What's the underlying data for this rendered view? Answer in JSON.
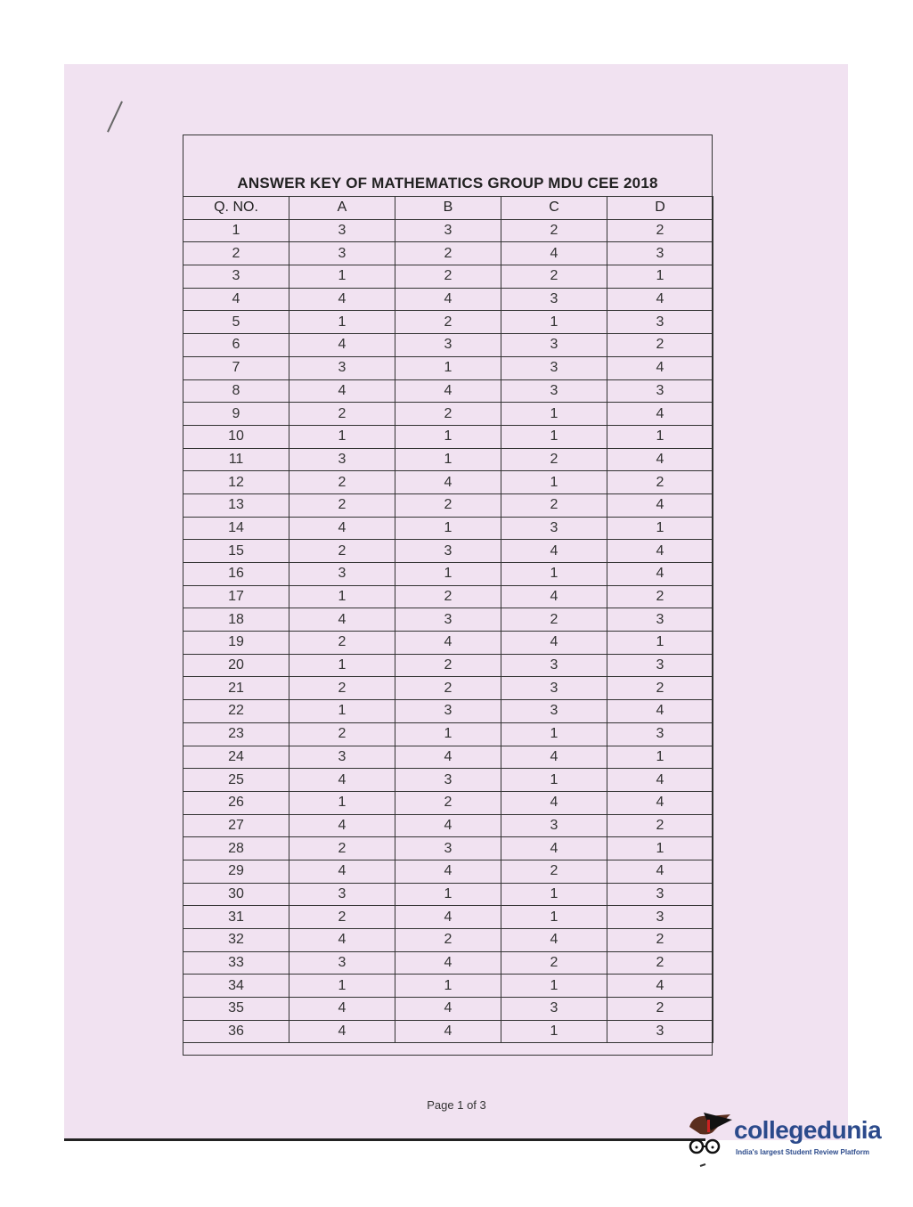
{
  "document": {
    "title": "ANSWER KEY OF MATHEMATICS GROUP MDU CEE 2018",
    "columns": [
      "Q. NO.",
      "A",
      "B",
      "C",
      "D"
    ],
    "rows": [
      [
        "1",
        "3",
        "3",
        "2",
        "2"
      ],
      [
        "2",
        "3",
        "2",
        "4",
        "3"
      ],
      [
        "3",
        "1",
        "2",
        "2",
        "1"
      ],
      [
        "4",
        "4",
        "4",
        "3",
        "4"
      ],
      [
        "5",
        "1",
        "2",
        "1",
        "3"
      ],
      [
        "6",
        "4",
        "3",
        "3",
        "2"
      ],
      [
        "7",
        "3",
        "1",
        "3",
        "4"
      ],
      [
        "8",
        "4",
        "4",
        "3",
        "3"
      ],
      [
        "9",
        "2",
        "2",
        "1",
        "4"
      ],
      [
        "10",
        "1",
        "1",
        "1",
        "1"
      ],
      [
        "11",
        "3",
        "1",
        "2",
        "4"
      ],
      [
        "12",
        "2",
        "4",
        "1",
        "2"
      ],
      [
        "13",
        "2",
        "2",
        "2",
        "4"
      ],
      [
        "14",
        "4",
        "1",
        "3",
        "1"
      ],
      [
        "15",
        "2",
        "3",
        "4",
        "4"
      ],
      [
        "16",
        "3",
        "1",
        "1",
        "4"
      ],
      [
        "17",
        "1",
        "2",
        "4",
        "2"
      ],
      [
        "18",
        "4",
        "3",
        "2",
        "3"
      ],
      [
        "19",
        "2",
        "4",
        "4",
        "1"
      ],
      [
        "20",
        "1",
        "2",
        "3",
        "3"
      ],
      [
        "21",
        "2",
        "2",
        "3",
        "2"
      ],
      [
        "22",
        "1",
        "3",
        "3",
        "4"
      ],
      [
        "23",
        "2",
        "1",
        "1",
        "3"
      ],
      [
        "24",
        "3",
        "4",
        "4",
        "1"
      ],
      [
        "25",
        "4",
        "3",
        "1",
        "4"
      ],
      [
        "26",
        "1",
        "2",
        "4",
        "4"
      ],
      [
        "27",
        "4",
        "4",
        "3",
        "2"
      ],
      [
        "28",
        "2",
        "3",
        "4",
        "1"
      ],
      [
        "29",
        "4",
        "4",
        "2",
        "4"
      ],
      [
        "30",
        "3",
        "1",
        "1",
        "3"
      ],
      [
        "31",
        "2",
        "4",
        "1",
        "3"
      ],
      [
        "32",
        "4",
        "2",
        "4",
        "2"
      ],
      [
        "33",
        "3",
        "4",
        "2",
        "2"
      ],
      [
        "34",
        "1",
        "1",
        "1",
        "4"
      ],
      [
        "35",
        "4",
        "4",
        "3",
        "2"
      ],
      [
        "36",
        "4",
        "4",
        "1",
        "3"
      ]
    ],
    "footer": "Page 1 of 3"
  },
  "watermark": {
    "brand": "collegedunia",
    "tagline": "India's largest Student Review Platform",
    "brand_color": "#2b4a8b"
  },
  "colors": {
    "paper": "#f1e2f1"
  }
}
